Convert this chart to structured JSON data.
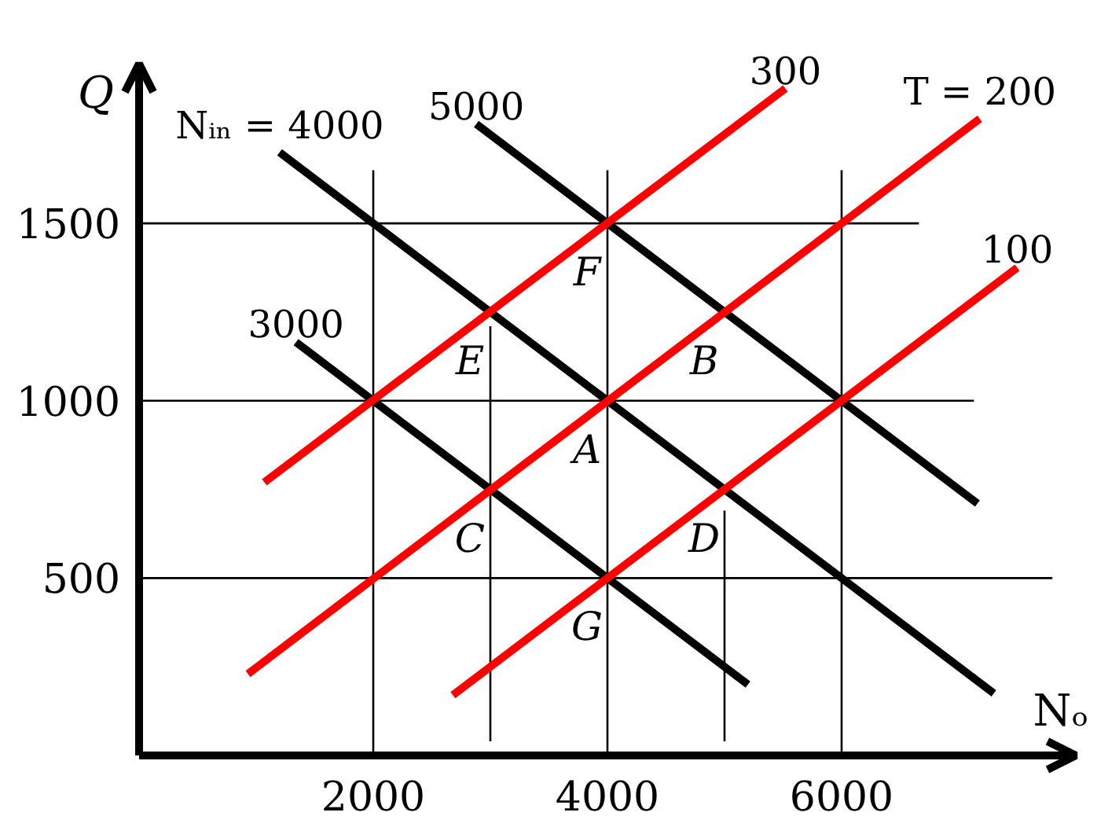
{
  "chart_data": {
    "type": "line",
    "xlabel": "Nₒ",
    "ylabel": "Q",
    "xlim": [
      0,
      8000
    ],
    "ylim": [
      0,
      1950
    ],
    "xticks": [
      2000,
      4000,
      6000
    ],
    "yticks": [
      500,
      1000,
      1500
    ],
    "series": [
      {
        "color": "#000000",
        "x": [
          0,
          6660
        ],
        "values": [
          1500,
          1500
        ]
      },
      {
        "color": "#000000",
        "x": [
          0,
          7130
        ],
        "values": [
          1000,
          1000
        ]
      },
      {
        "color": "#000000",
        "x": [
          0,
          7800
        ],
        "values": [
          500,
          500
        ]
      },
      {
        "color": "#000000",
        "x": [
          2000,
          2000
        ],
        "values": [
          0,
          1650
        ]
      },
      {
        "color": "#000000",
        "x": [
          3000,
          3000
        ],
        "values": [
          40,
          1210
        ]
      },
      {
        "color": "#000000",
        "x": [
          4000,
          4000
        ],
        "values": [
          0,
          1650
        ]
      },
      {
        "color": "#000000",
        "x": [
          5000,
          5000
        ],
        "values": [
          40,
          690
        ]
      },
      {
        "color": "#000000",
        "x": [
          6000,
          6000
        ],
        "values": [
          0,
          1650
        ]
      },
      {
        "name": "3000",
        "color": "#000000",
        "x": [
          1340,
          5200
        ],
        "values": [
          1165,
          200
        ]
      },
      {
        "name": "Nᵢₙ = 4000",
        "color": "#000000",
        "x": [
          1200,
          7300
        ],
        "values": [
          1700,
          175
        ]
      },
      {
        "name": "5000",
        "color": "#000000",
        "x": [
          2880,
          7160
        ],
        "values": [
          1780,
          710
        ]
      },
      {
        "name": "300",
        "color": "#ff0000",
        "x": [
          1070,
          5520
        ],
        "values": [
          770,
          1880
        ]
      },
      {
        "name": "T = 200",
        "color": "#ff0000",
        "x": [
          930,
          7180
        ],
        "values": [
          230,
          1795
        ]
      },
      {
        "name": "100",
        "color": "#ff0000",
        "x": [
          2680,
          7500
        ],
        "values": [
          170,
          1375
        ]
      }
    ],
    "annotations": [
      {
        "text": "A",
        "x": 4000,
        "y": 1000
      },
      {
        "text": "B",
        "x": 5000,
        "y": 1250
      },
      {
        "text": "C",
        "x": 3000,
        "y": 750
      },
      {
        "text": "D",
        "x": 5000,
        "y": 750
      },
      {
        "text": "E",
        "x": 3000,
        "y": 1250
      },
      {
        "text": "F",
        "x": 4000,
        "y": 1500
      },
      {
        "text": "G",
        "x": 4000,
        "y": 500
      }
    ]
  }
}
